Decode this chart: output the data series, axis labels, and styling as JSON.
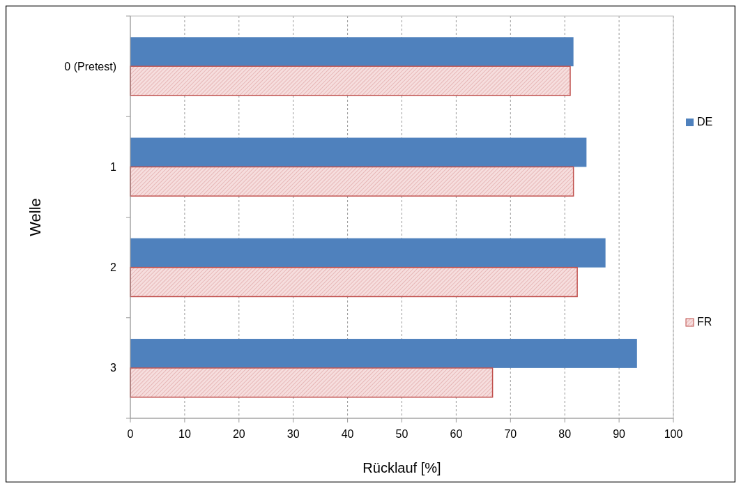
{
  "chart_data": {
    "type": "bar",
    "orientation": "horizontal",
    "xlabel": "Rücklauf [%]",
    "ylabel": "Welle",
    "categories": [
      "0 (Pretest)",
      "1",
      "2",
      "3"
    ],
    "series": [
      {
        "name": "DE",
        "color": "#4f81bd",
        "values": [
          81.6,
          84.0,
          87.5,
          93.3
        ]
      },
      {
        "name": "FR",
        "color": "#c0504d",
        "values": [
          81.0,
          81.6,
          82.3,
          66.7
        ]
      }
    ],
    "xlim": [
      0,
      100
    ],
    "xticks": [
      0,
      10,
      20,
      30,
      40,
      50,
      60,
      70,
      80,
      90,
      100
    ],
    "grid": "x",
    "legend": "right"
  }
}
